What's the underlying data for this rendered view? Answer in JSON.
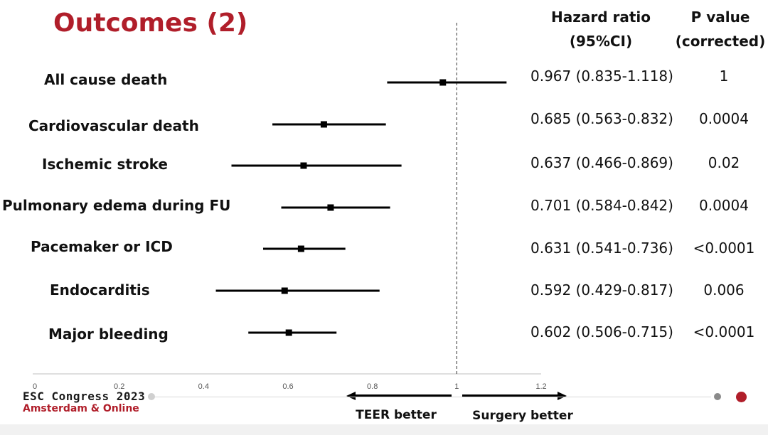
{
  "slide": {
    "title": "Outcomes (2)",
    "hr_header_line1": "Hazard ratio",
    "hr_header_line2": "(95%CI)",
    "p_header_line1": "P value",
    "p_header_line2": "(corrected)"
  },
  "chart_data": {
    "type": "forest",
    "reference_value": 1,
    "xlim": [
      0,
      1.2
    ],
    "x_ticks": [
      "0",
      "0.2",
      "0.4",
      "0.6",
      "0.8",
      "1",
      "1.2"
    ],
    "x_tick_values": [
      0,
      0.2,
      0.4,
      0.6,
      0.8,
      1.0,
      1.2
    ],
    "left_arrow_label": "TEER better",
    "right_arrow_label": "Surgery better",
    "outcomes": [
      {
        "label": "All cause death",
        "hr": 0.967,
        "lo": 0.835,
        "hi": 1.118,
        "hr_text": "0.967 (0.835-1.118)",
        "p": "1"
      },
      {
        "label": "Cardiovascular death",
        "hr": 0.685,
        "lo": 0.563,
        "hi": 0.832,
        "hr_text": "0.685 (0.563-0.832)",
        "p": "0.0004"
      },
      {
        "label": "Ischemic stroke",
        "hr": 0.637,
        "lo": 0.466,
        "hi": 0.869,
        "hr_text": "0.637 (0.466-0.869)",
        "p": "0.02"
      },
      {
        "label": "Pulmonary edema during FU",
        "hr": 0.701,
        "lo": 0.584,
        "hi": 0.842,
        "hr_text": "0.701 (0.584-0.842)",
        "p": "0.0004"
      },
      {
        "label": "Pacemaker or ICD",
        "hr": 0.631,
        "lo": 0.541,
        "hi": 0.736,
        "hr_text": "0.631 (0.541-0.736)",
        "p": "<0.0001"
      },
      {
        "label": "Endocarditis",
        "hr": 0.592,
        "lo": 0.429,
        "hi": 0.817,
        "hr_text": "0.592 (0.429-0.817)",
        "p": "0.006"
      },
      {
        "label": "Major bleeding",
        "hr": 0.602,
        "lo": 0.506,
        "hi": 0.715,
        "hr_text": "0.602 (0.506-0.715)",
        "p": "<0.0001"
      }
    ]
  },
  "footer": {
    "congress": "ESC Congress 2023",
    "location": "Amsterdam & Online"
  },
  "colors": {
    "title": "#b01e2a",
    "accent_dot": "#b01e2a",
    "grey_dot": "#8a8a8a",
    "light_dot": "#d0d0d0"
  }
}
